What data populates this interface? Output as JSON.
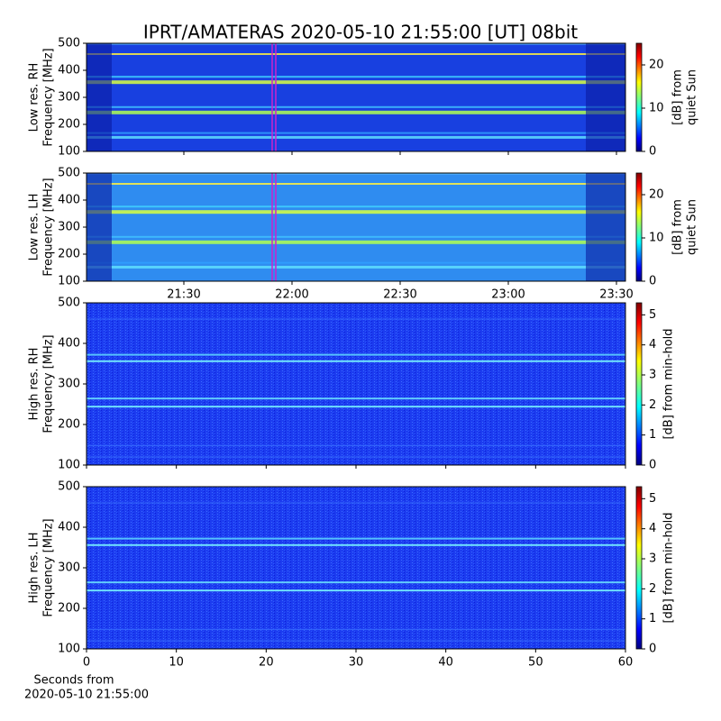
{
  "chart_data": [
    {
      "type": "heatmap",
      "title": "IPRT/AMATERAS 2020-05-10 21:55:00 [UT]   08bit",
      "ylabel": [
        "Low res. RH",
        "Frequency [MHz]"
      ],
      "ylim": [
        100,
        500
      ],
      "yticks": [
        100,
        200,
        300,
        400,
        500
      ],
      "xlim": [
        1263,
        1412.5
      ],
      "xticks": [
        1290,
        1320,
        1350,
        1380,
        1410
      ],
      "xtick_labels": false,
      "markers": [
        {
          "x": 1314.5,
          "color": "#cc22cc"
        },
        {
          "x": 1315.5,
          "color": "#cc22cc"
        }
      ],
      "clabel": [
        "[dB] from",
        "quiet Sun"
      ],
      "clim": [
        0,
        25
      ],
      "cticks": [
        0,
        10,
        20
      ]
    },
    {
      "type": "heatmap",
      "ylabel": [
        "Low res. LH",
        "Frequency [MHz]"
      ],
      "ylim": [
        100,
        500
      ],
      "yticks": [
        100,
        200,
        300,
        400,
        500
      ],
      "xlim": [
        1263,
        1412.5
      ],
      "xticks": [
        {
          "value": 1290,
          "label": "21:30"
        },
        {
          "value": 1320,
          "label": "22:00"
        },
        {
          "value": 1350,
          "label": "22:30"
        },
        {
          "value": 1380,
          "label": "23:00"
        },
        {
          "value": 1410,
          "label": "23:30"
        }
      ],
      "markers": [
        {
          "x": 1314.5,
          "color": "#cc22cc"
        },
        {
          "x": 1315.5,
          "color": "#cc22cc"
        }
      ],
      "clabel": [
        "[dB] from",
        "quiet Sun"
      ],
      "clim": [
        0,
        25
      ],
      "cticks": [
        0,
        10,
        20
      ]
    },
    {
      "type": "heatmap",
      "ylabel": [
        "High res. RH",
        "Frequency [MHz]"
      ],
      "ylim": [
        100,
        500
      ],
      "yticks": [
        100,
        200,
        300,
        400,
        500
      ],
      "xlim": [
        0,
        60
      ],
      "xticks": [
        0,
        10,
        20,
        30,
        40,
        50,
        60
      ],
      "xtick_labels": false,
      "clabel": [
        "[dB] from min-hold"
      ],
      "clim": [
        0,
        5.4
      ],
      "cticks": [
        0,
        1,
        2,
        3,
        4,
        5
      ]
    },
    {
      "type": "heatmap",
      "ylabel": [
        "High res. LH",
        "Frequency [MHz]"
      ],
      "ylim": [
        100,
        500
      ],
      "yticks": [
        100,
        200,
        300,
        400,
        500
      ],
      "xlim": [
        0,
        60
      ],
      "xticks": [
        0,
        10,
        20,
        30,
        40,
        50,
        60
      ],
      "xlabel": [
        "Seconds from",
        "2020-05-10 21:55:00"
      ],
      "clabel": [
        "[dB] from min-hold"
      ],
      "clim": [
        0,
        5.4
      ],
      "cticks": [
        0,
        1,
        2,
        3,
        4,
        5
      ]
    }
  ]
}
